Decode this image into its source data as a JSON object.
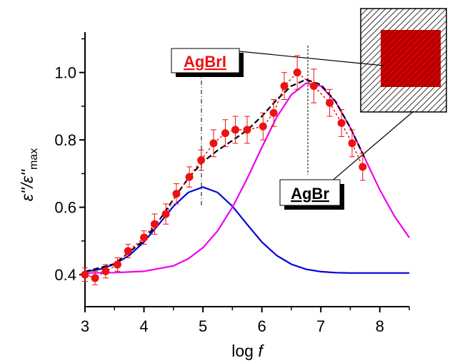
{
  "chart_data": {
    "type": "scatter",
    "x_label": "log",
    "x_label_var": "f",
    "y_label": "ε''/ε''",
    "y_label_sub": "max",
    "xlim": [
      3,
      8.5
    ],
    "ylim": [
      0.305,
      1.12
    ],
    "xticks": [
      3,
      4,
      5,
      6,
      7,
      8
    ],
    "xminor": [
      3.5,
      4.5,
      5.5,
      6.5,
      7.5,
      8.5
    ],
    "yticks": [
      0.4,
      0.6,
      0.8,
      {
        "value": 1,
        "label": "1.0"
      }
    ],
    "yminor": [
      0.5,
      0.7,
      0.9,
      1.1
    ],
    "series": [
      {
        "kind": "points",
        "color": "#ee1111",
        "x": [
          3.0,
          3.17,
          3.35,
          3.55,
          3.73,
          4.0,
          4.18,
          4.37,
          4.55,
          4.77,
          4.97,
          5.18,
          5.38,
          5.55,
          5.75,
          6.02,
          6.2,
          6.38,
          6.6,
          6.88,
          7.15,
          7.35,
          7.53,
          7.71
        ],
        "values": [
          0.4,
          0.39,
          0.41,
          0.43,
          0.47,
          0.51,
          0.55,
          0.58,
          0.64,
          0.69,
          0.74,
          0.79,
          0.82,
          0.83,
          0.83,
          0.84,
          0.88,
          0.96,
          1.0,
          0.96,
          0.91,
          0.85,
          0.79,
          0.72
        ],
        "errors": [
          0.02,
          0.02,
          0.02,
          0.02,
          0.02,
          0.02,
          0.03,
          0.03,
          0.03,
          0.03,
          0.03,
          0.04,
          0.04,
          0.04,
          0.04,
          0.04,
          0.04,
          0.04,
          0.05,
          0.05,
          0.04,
          0.04,
          0.04,
          0.04
        ]
      },
      {
        "kind": "curve",
        "color": "#0000dd",
        "x": [
          3,
          3.25,
          3.5,
          3.75,
          4,
          4.25,
          4.5,
          4.75,
          5,
          5.25,
          5.5,
          5.75,
          6,
          6.25,
          6.5,
          6.75,
          7,
          7.25,
          7.5,
          8,
          8.5
        ],
        "values": [
          0.409,
          0.416,
          0.431,
          0.457,
          0.497,
          0.549,
          0.603,
          0.644,
          0.66,
          0.644,
          0.603,
          0.549,
          0.497,
          0.457,
          0.431,
          0.416,
          0.409,
          0.406,
          0.405,
          0.405,
          0.405
        ]
      },
      {
        "kind": "curve",
        "color": "#ee00ee",
        "x": [
          3,
          3.5,
          4,
          4.5,
          4.75,
          5,
          5.25,
          5.5,
          5.75,
          6,
          6.25,
          6.5,
          6.75,
          7,
          7.25,
          7.5,
          7.75,
          8,
          8.25,
          8.5
        ],
        "values": [
          0.405,
          0.406,
          0.41,
          0.426,
          0.447,
          0.48,
          0.53,
          0.6,
          0.685,
          0.778,
          0.867,
          0.934,
          0.968,
          0.96,
          0.913,
          0.836,
          0.744,
          0.652,
          0.573,
          0.51
        ]
      },
      {
        "kind": "curve",
        "color": "#000000",
        "dash": "8 4",
        "x": [
          3,
          3.5,
          4,
          4.25,
          4.5,
          4.75,
          5,
          5.25,
          5.5,
          5.75,
          6,
          6.25,
          6.5,
          6.75,
          7,
          7.25,
          7.5,
          7.75
        ],
        "values": [
          0.409,
          0.432,
          0.502,
          0.559,
          0.624,
          0.686,
          0.735,
          0.769,
          0.798,
          0.829,
          0.87,
          0.919,
          0.96,
          0.979,
          0.964,
          0.914,
          0.836,
          0.744
        ]
      }
    ],
    "annotations": [
      {
        "text": "AgBrI",
        "color": "#ee1111"
      },
      {
        "text": "AgBr",
        "color": "#000000"
      }
    ]
  }
}
